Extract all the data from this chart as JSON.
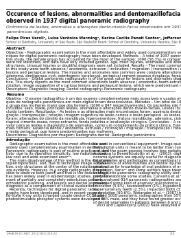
{
  "title_en": "Occurence of lesions, abnormalities and dentomaxillofacial changes\nobserved in 1937 digital panoramic radiography",
  "title_pt": "Ocórrencia de lesões, anomalias e alterações dento-maxilo-facial observados em 1937 radiografias\npanorâmicas digitais.",
  "authors": "Felipe Pires Varoli¹, Luisa Verônica Warming¹, Karina Cecilia Panati Santos¹, Jefferson Xavier Oliveira¹",
  "affiliation": "School of Dentistry, University of São Paulo, São Paulo/SP Brazil; School of Dentistry, University Paulista, São Paulo/SP Brazil",
  "abstract_title": "Abstract",
  "abs_text": "Objective – Radiographic examination is the most affordable and widely used complementary examination in dentistry. Recently, tech-\nniques for digital panoramic radiography have been developed. Methods – A total of 1937 panoramic radiographies were evaluated in\nthis study, the female group has accounted for the most of the sample: 1090 (56.3%) in comparison to 847 (43.7%) men. The patients\nwere not identified, and data have only included gender, age, main injuries, anomalies and alterations at maxillofacial region or adjacent\nstructures. Unusual injuries or doubtful diagnosis were not included. Results – The most common injuries and alterations that were found\nin this study were teeth absence / anodontia, extrusion / inclination / migration / transposition / rotation, image suggestion of a carious\nlesions and periapical lesions. The injuries and anomalies less common were condyle alterations, hypercementosis, mandible fracture,\nadenoma, dentigerous cyst, odontogenic keratocyst, periapical cement osseous dysplasia, foreign body, cleft palate and surgical location.\nConclusions – Digital panoramic radiography is of the great value for lesions and anomalies diagnosis, as a complement of clinical prac-\ntice. This study reports as the most common alterations teeth absence / anodontia, teeth extrusion / inclination / migration/ transposition/\nrotation, image suggestion of a carious lesions and periapical lesions, which were predominant in the female group.\nDescriptors: Diagnostic Imaging; Dental radiography; Panoramic radiography",
  "resumo_title": "Resumo",
  "res_text": "Objetivo – O exame radiográfico é um dos exames complementares mais acessíveis e usados em Odontologia. Recentemente, técni-\nques de radiografia panorâmica em meio digital foram desenvolvidas. Métodos – Um total de 1937 radiografias foram avaliados neste estudo, sendo\no grupo das mulheres maior que dos homens (1090 e 847 respectivamente). Os pacientes não foram identificados e só os dados foram\nincluídos: sexo, idade, principais lesões, anomalias e alterações dento-maxilo-faciais. Lesões incomuns ou diagnóstico duvidoso foi ex-\ncluído também. Resultados – As lesões e as alterações mais encontradas foram: ausência dental / anodontia, extrusão / inclinação / mi-\ngração / transposição / rotação, imagem sugestiva de lesão cariosa e lesão periapical. As lesões e injurias menos comuns encontradas\nforam: alterações do côndilo da mandíbula, hipercementose, fratura mandibular, adenoma, cisto dentígero, queratoristo, displasia pe-\nriapical cimento-óssea, corpo estranho, fenda palatina e localização cirúrgica. Conclusões – A radiografia panorâmica digital é de grande\nvalor para as lesões e diagnóstico de anomalias, como um complemento da prática clínica. Este estudo mostrou como lesões e alterações\nmais comuns: ausência dental / anodontia, extrusão / inclinação / migração / transposição / rotação, imagem sugestiva de lesão cariosa\ne lesão periapical, que foram predominantes nas mulheres.\nDescritores: Diagnóstico por imagem; Radiografia dental; Radiografia panorâmica.",
  "intro_title": "Introdução",
  "intro_col1": "   Radiographic examination is the most affordable and\nwidely used complementary examination in dentistry.\nPanoramic radiography is part of routine practice of den-\ntists¹ due to its operation simplicity, low radiation dose,\nlow cost and wide examined area²³⁴.\n   The main disadvantage of this method is the structures\nsuperimpositions, and, due to technique image acquisi-\ntion, only structures at the center of the rotational area\nare evidentµ. However, in a single radiography it is pos-\nsible to observe both jaws¶ and that is the reason why it\nhas been widely used in epidemiologic studies, pre-treat-\nment of partially and completely edentulous patients,\northodontic planning, and lesions and dental anomalies\ndiagnosis as a complement of clinical evaluation⁷⁸.\n   Recently, techniques for digital panoramic radio-\ngraphy have been developed, and in recent years so-\nlid-state X-ray units (charged couple device-CCD) and\nphotostimulable phosphor systems were developed to",
  "intro_col2": "be used in conventional equipment⁹. Image quality\nfrom digital units is meant to be better than conventional\none, and the exam process involves less radiation dose¹⁰.\nAccording to Benediktsdottir et al.¹¹ (2003): digital pa-\nnorama systems are equally useful for diagnosis of den-\ntal anomalies and pathologies as conventional systems.\n   Prevalence of abnormalities and dental injuries are of\ngreat value for knowledge of oral problems of a certain\npopulation. Ilaria¹² and some authors have taken ad-\nvantage into panoramic radiography utility and practi-\ncality to elaborate some studies. Carvalho et al.¹³ (1987)\nhave analyzed 914 panoramic radiographies and 110\npresented some kind of anomaly: macrodontia (2.3%),\nlaceration (5.6%), taurodontism (1%), hypodontia (7%),\nsupernumerary teeth (2.3%), impacted tooth (31.2%)\nand rotation (60.6%). Watanabe et al.¹⁴ (1987) have\nstudied 5000 panoramic radiographes from 55% female\nand 45% male, and they have found greater occurrence\nof dental anomalies in patients between 6 and 12 years.\n   Vicci and Capelozza¹µ (2002) have analyzed 471 pa-",
  "page_number": "218",
  "journal_label": "J HEALTH SCI INST. 2012;30(3):218-23",
  "bg_color": "#ffffff",
  "text_color": "#000000"
}
